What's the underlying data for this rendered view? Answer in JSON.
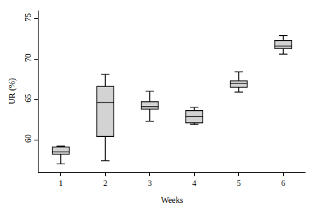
{
  "chart_data": {
    "type": "box",
    "x_label": "Weeks",
    "y_label": "UR (%)",
    "categories": [
      "1",
      "2",
      "3",
      "4",
      "5",
      "6"
    ],
    "low": [
      57.0,
      57.4,
      62.3,
      61.9,
      65.9,
      70.6
    ],
    "q1": [
      58.2,
      60.4,
      63.8,
      62.1,
      66.5,
      71.3
    ],
    "median": [
      58.5,
      64.6,
      64.1,
      62.9,
      67.0,
      71.6
    ],
    "q3": [
      59.1,
      66.6,
      64.7,
      63.6,
      67.3,
      72.3
    ],
    "high": [
      59.2,
      68.1,
      66.0,
      64.0,
      68.4,
      72.9
    ],
    "color": "#d3d3d3",
    "ylim": [
      56,
      76
    ],
    "yticks": [
      60,
      65,
      70,
      75
    ],
    "grid": false
  }
}
